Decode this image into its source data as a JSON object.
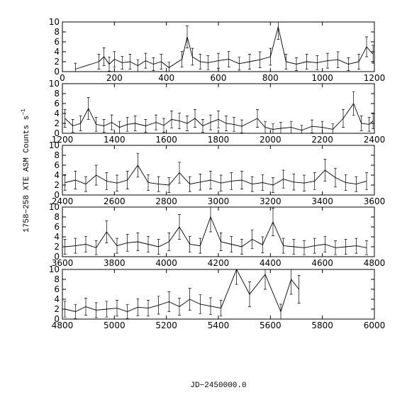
{
  "chart_data": [
    {
      "type": "line",
      "ylabel": "1758−258 XTE ASM Counts s",
      "ylabel_exponent": "−1",
      "xlim": [
        0,
        1200
      ],
      "ylim": [
        0,
        10
      ],
      "xticks": [
        0,
        200,
        400,
        600,
        800,
        1000,
        1200
      ],
      "yticks": [
        0,
        2,
        4,
        6,
        8,
        10
      ],
      "series": [
        {
          "color": "#000000",
          "x": [
            50,
            140,
            160,
            180,
            200,
            230,
            260,
            290,
            320,
            350,
            380,
            410,
            460,
            480,
            500,
            530,
            560,
            600,
            640,
            680,
            720,
            760,
            800,
            830,
            860,
            900,
            940,
            980,
            1020,
            1060,
            1100,
            1140,
            1170,
            1195
          ],
          "values": [
            0.5,
            2,
            3,
            1.5,
            2.5,
            1.8,
            2,
            1.2,
            2.2,
            1.5,
            2,
            0.8,
            2.5,
            7,
            3,
            2,
            1.8,
            2.2,
            2.5,
            1.6,
            2,
            2.4,
            3,
            9,
            2,
            1.5,
            2,
            1.8,
            2.2,
            2.4,
            1.5,
            2,
            5,
            3.5
          ],
          "errors": [
            1.2,
            1.5,
            1.8,
            1.4,
            1.6,
            1.3,
            1.5,
            1.2,
            1.5,
            1.3,
            1.5,
            1.1,
            1.6,
            2.2,
            1.7,
            1.5,
            1.4,
            1.5,
            1.6,
            1.3,
            1.5,
            1.6,
            1.7,
            2.5,
            1.5,
            1.3,
            1.5,
            1.4,
            1.5,
            1.6,
            1.3,
            1.5,
            2,
            1.8
          ]
        }
      ]
    },
    {
      "type": "line",
      "xlim": [
        1200,
        2400
      ],
      "ylim": [
        0,
        10
      ],
      "xticks": [
        1200,
        1400,
        1600,
        1800,
        2000,
        2200,
        2400
      ],
      "yticks": [
        0,
        2,
        4,
        6,
        8,
        10
      ],
      "series": [
        {
          "color": "#000000",
          "x": [
            1210,
            1240,
            1270,
            1300,
            1330,
            1360,
            1390,
            1420,
            1450,
            1480,
            1520,
            1560,
            1590,
            1620,
            1650,
            1680,
            1710,
            1740,
            1770,
            1800,
            1830,
            1860,
            1890,
            1950,
            1980,
            2010,
            2040,
            2080,
            2120,
            2160,
            2200,
            2240,
            2280,
            2320,
            2350,
            2380,
            2395
          ],
          "values": [
            3,
            1.5,
            2,
            5,
            1.8,
            1.5,
            2.2,
            1.2,
            1.8,
            2,
            1.5,
            2.2,
            1.6,
            2.8,
            2.5,
            2,
            3,
            1.5,
            2.2,
            2.8,
            2,
            1.8,
            1.4,
            3,
            1.2,
            0.8,
            1,
            1.2,
            0.6,
            1.4,
            1.2,
            0.8,
            3,
            6,
            2,
            1.8,
            2.5
          ],
          "errors": [
            1.8,
            1.3,
            1.5,
            2.2,
            1.4,
            1.3,
            1.5,
            1.2,
            1.4,
            1.5,
            1.3,
            1.5,
            1.4,
            1.7,
            1.6,
            1.5,
            1.8,
            1.3,
            1.5,
            1.7,
            1.5,
            1.4,
            1.3,
            1.8,
            1.2,
            1.1,
            1.2,
            1.2,
            1,
            1.3,
            1.2,
            1.1,
            1.8,
            2.4,
            1.5,
            1.4,
            1.6
          ]
        }
      ]
    },
    {
      "type": "line",
      "xlim": [
        2400,
        3600
      ],
      "ylim": [
        0,
        10
      ],
      "xticks": [
        2400,
        2600,
        2800,
        3000,
        3200,
        3400,
        3600
      ],
      "yticks": [
        0,
        2,
        4,
        6,
        8,
        10
      ],
      "series": [
        {
          "color": "#000000",
          "x": [
            2410,
            2450,
            2490,
            2530,
            2570,
            2610,
            2650,
            2690,
            2730,
            2770,
            2810,
            2850,
            2890,
            2930,
            2970,
            3010,
            3050,
            3090,
            3130,
            3170,
            3210,
            3250,
            3290,
            3330,
            3370,
            3410,
            3450,
            3490,
            3530,
            3570
          ],
          "values": [
            2.5,
            3,
            2.2,
            4,
            2.8,
            2.4,
            3,
            6,
            2.5,
            2.2,
            2,
            4.5,
            2.2,
            2.6,
            3,
            2.4,
            2.8,
            3,
            2.2,
            2.5,
            2,
            3.2,
            2.6,
            2.4,
            2.8,
            5,
            3.5,
            2.5,
            2.2,
            2.8
          ],
          "errors": [
            1.6,
            1.8,
            1.5,
            2,
            1.7,
            1.6,
            1.8,
            2.4,
            1.6,
            1.5,
            1.5,
            2.1,
            1.5,
            1.6,
            1.8,
            1.6,
            1.7,
            1.8,
            1.5,
            1.6,
            1.5,
            1.8,
            1.6,
            1.6,
            1.7,
            2.2,
            1.9,
            1.6,
            1.5,
            1.7
          ]
        }
      ]
    },
    {
      "type": "line",
      "xlim": [
        3600,
        4800
      ],
      "ylim": [
        0,
        10
      ],
      "xticks": [
        3600,
        3800,
        4000,
        4200,
        4400,
        4600,
        4800
      ],
      "yticks": [
        0,
        2,
        4,
        6,
        8,
        10
      ],
      "series": [
        {
          "color": "#000000",
          "x": [
            3610,
            3650,
            3690,
            3730,
            3770,
            3810,
            3850,
            3890,
            3930,
            3970,
            4010,
            4050,
            4090,
            4130,
            4170,
            4210,
            4250,
            4290,
            4330,
            4370,
            4410,
            4450,
            4490,
            4530,
            4570,
            4610,
            4650,
            4690,
            4730,
            4770
          ],
          "values": [
            2,
            2.2,
            2.5,
            1.8,
            5,
            2.2,
            2.8,
            3,
            2.5,
            2,
            3,
            6,
            2.5,
            2.2,
            8,
            3,
            2.5,
            2,
            3.5,
            2.4,
            7,
            2.2,
            2,
            1.8,
            2.2,
            2.5,
            1.8,
            2,
            2.2,
            1.8
          ],
          "errors": [
            1.5,
            1.5,
            1.6,
            1.4,
            2.2,
            1.5,
            1.7,
            1.8,
            1.6,
            1.5,
            1.8,
            2.5,
            1.6,
            1.5,
            3,
            1.8,
            1.6,
            1.5,
            1.9,
            1.6,
            2.8,
            1.5,
            1.5,
            1.4,
            1.5,
            1.6,
            1.4,
            1.5,
            1.5,
            1.4
          ]
        }
      ]
    },
    {
      "type": "line",
      "xlabel": "JD−2450000.0",
      "xlim": [
        4800,
        6000
      ],
      "ylim": [
        0,
        10
      ],
      "xticks": [
        4800,
        5000,
        5200,
        5400,
        5600,
        5800,
        6000
      ],
      "yticks": [
        0,
        2,
        4,
        6,
        8,
        10
      ],
      "series": [
        {
          "color": "#000000",
          "x": [
            4810,
            4850,
            4890,
            4930,
            4970,
            5010,
            5050,
            5090,
            5130,
            5170,
            5210,
            5250,
            5290,
            5330,
            5370,
            5410,
            5470,
            5520,
            5580,
            5640,
            5680,
            5710
          ],
          "values": [
            2,
            1.5,
            2.5,
            1.8,
            2,
            2.2,
            1.5,
            2.4,
            2.2,
            2.8,
            3.5,
            2.5,
            4,
            3,
            2.6,
            2.2,
            10,
            5,
            9,
            1.5,
            8,
            6
          ],
          "errors": [
            1.6,
            1.4,
            1.7,
            1.5,
            1.6,
            1.6,
            1.4,
            1.7,
            1.6,
            1.8,
            2,
            1.7,
            2.2,
            1.9,
            1.7,
            1.6,
            3,
            2.5,
            3,
            1.5,
            3,
            2.8
          ]
        }
      ]
    }
  ]
}
